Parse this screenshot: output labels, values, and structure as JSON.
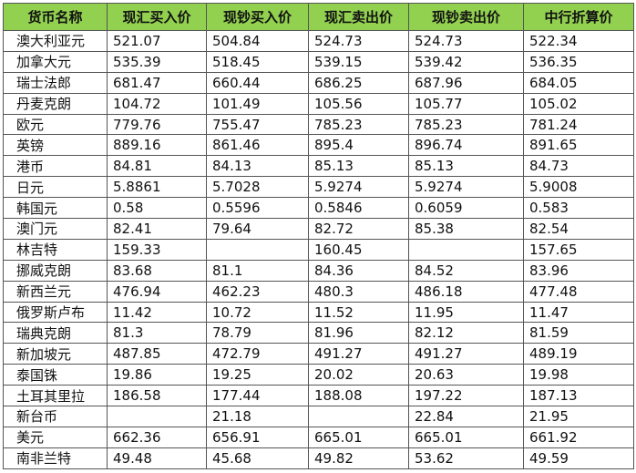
{
  "table": {
    "header": [
      "货币名称",
      "现汇买入价",
      "现钞买入价",
      "现汇卖出价",
      "现钞卖出价",
      "中行折算价"
    ],
    "rows": [
      [
        "澳大利亚元",
        "521.07",
        "504.84",
        "524.73",
        "524.73",
        "522.34"
      ],
      [
        "加拿大元",
        "535.39",
        "518.45",
        "539.15",
        "539.42",
        "536.35"
      ],
      [
        "瑞士法郎",
        "681.47",
        "660.44",
        "686.25",
        "687.96",
        "684.05"
      ],
      [
        "丹麦克朗",
        "104.72",
        "101.49",
        "105.56",
        "105.77",
        "105.02"
      ],
      [
        "欧元",
        "779.76",
        "755.47",
        "785.23",
        "785.23",
        "781.24"
      ],
      [
        "英镑",
        "889.16",
        "861.46",
        "895.4",
        "896.74",
        "891.65"
      ],
      [
        "港币",
        "84.81",
        "84.13",
        "85.13",
        "85.13",
        "84.73"
      ],
      [
        "日元",
        "5.8861",
        "5.7028",
        "5.9274",
        "5.9274",
        "5.9008"
      ],
      [
        "韩国元",
        "0.58",
        "0.5596",
        "0.5846",
        "0.6059",
        "0.583"
      ],
      [
        "澳门元",
        "82.41",
        "79.64",
        "82.72",
        "85.38",
        "82.54"
      ],
      [
        "林吉特",
        "159.33",
        null,
        "160.45",
        null,
        "157.65"
      ],
      [
        "挪威克朗",
        "83.68",
        "81.1",
        "84.36",
        "84.52",
        "83.96"
      ],
      [
        "新西兰元",
        "476.94",
        "462.23",
        "480.3",
        "486.18",
        "477.48"
      ],
      [
        "俄罗斯卢布",
        "11.42",
        "10.72",
        "11.52",
        "11.95",
        "11.47"
      ],
      [
        "瑞典克朗",
        "81.3",
        "78.79",
        "81.96",
        "82.12",
        "81.59"
      ],
      [
        "新加坡元",
        "487.85",
        "472.79",
        "491.27",
        "491.27",
        "489.19"
      ],
      [
        "泰国铢",
        "19.86",
        "19.25",
        "20.02",
        "20.63",
        "19.98"
      ],
      [
        "土耳其里拉",
        "186.58",
        "177.44",
        "188.08",
        "197.22",
        "187.13"
      ],
      [
        "新台币",
        null,
        "21.18",
        null,
        "22.84",
        "21.95"
      ],
      [
        "美元",
        "662.36",
        "656.91",
        "665.01",
        "665.01",
        "661.92"
      ],
      [
        "南非兰特",
        "49.48",
        "45.68",
        "49.82",
        "53.62",
        "49.59"
      ]
    ]
  }
}
